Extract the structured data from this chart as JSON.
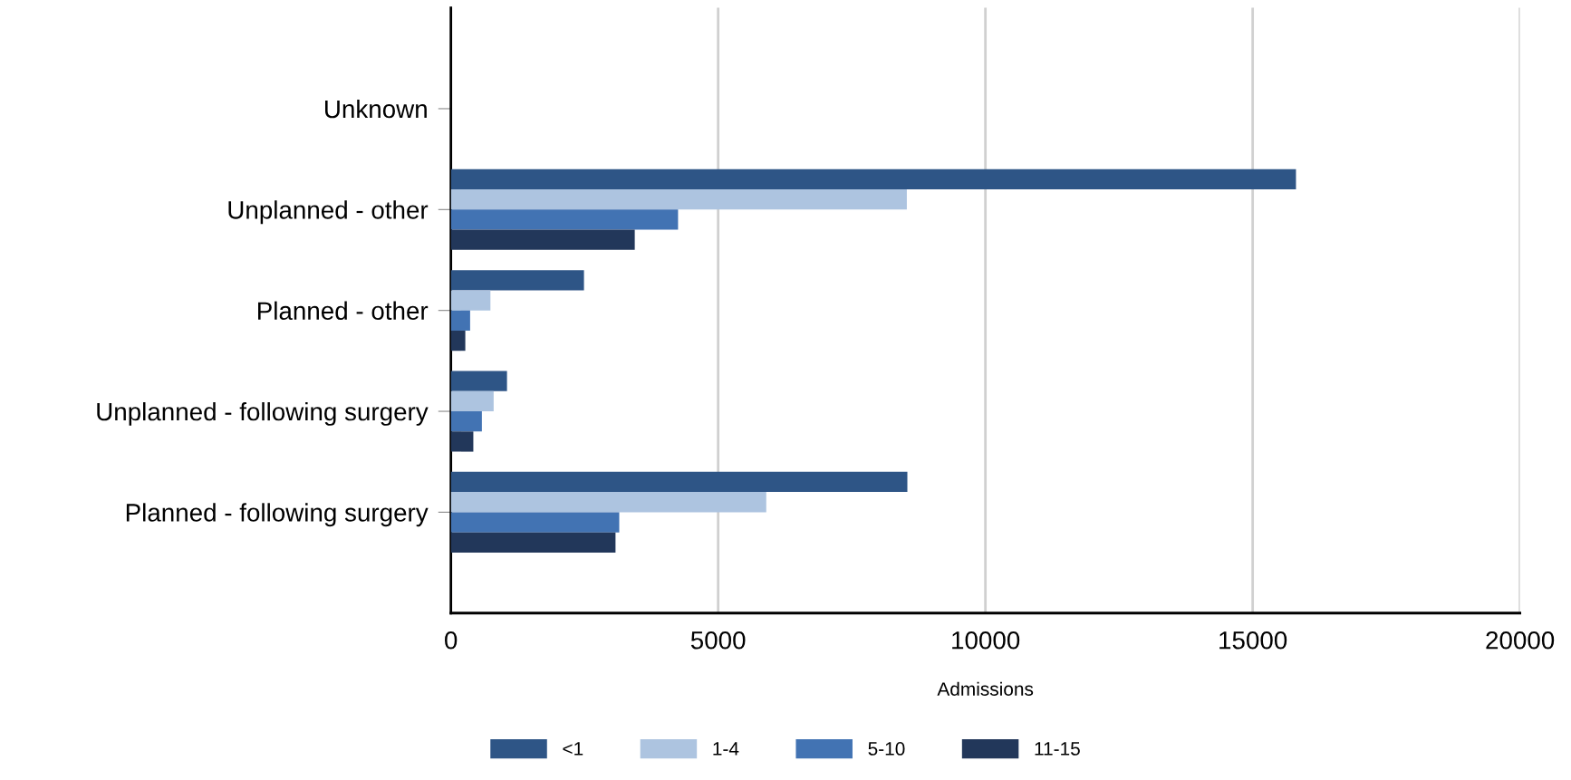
{
  "chart_data": {
    "type": "bar",
    "orientation": "horizontal",
    "xlabel": "Admissions",
    "categories": [
      "Unknown",
      "Unplanned - other",
      "Planned - other",
      "Unplanned - following surgery",
      "Planned - following surgery"
    ],
    "series": [
      {
        "name": "<1",
        "color": "#2e5586",
        "values": [
          0,
          15810,
          2490,
          1050,
          8540
        ]
      },
      {
        "name": "1-4",
        "color": "#adc4e0",
        "values": [
          0,
          8530,
          740,
          800,
          5900
        ]
      },
      {
        "name": "5-10",
        "color": "#4273b3",
        "values": [
          0,
          4250,
          360,
          580,
          3150
        ]
      },
      {
        "name": "11-15",
        "color": "#22375a",
        "values": [
          0,
          3440,
          270,
          420,
          3080
        ]
      }
    ],
    "xlim": [
      0,
      20000
    ],
    "xticks": [
      0,
      5000,
      10000,
      15000,
      20000
    ],
    "grid": "x",
    "legend": "bottom"
  }
}
